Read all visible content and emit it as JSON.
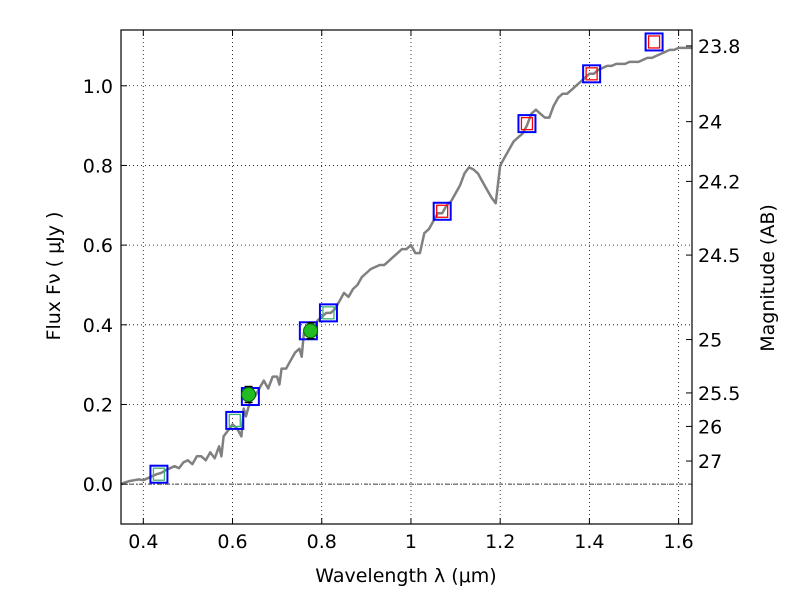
{
  "chart_data": {
    "type": "scatter",
    "title": "",
    "xlabel": "Wavelength  λ (μm)",
    "ylabel": "Flux  Fν  ( μJy )",
    "y2label": "Magnitude (AB)",
    "xlim": [
      0.35,
      1.63
    ],
    "ylim": [
      -0.1,
      1.14
    ],
    "grid": true,
    "x_ticks": [
      {
        "value": 0.4,
        "label": "0.4"
      },
      {
        "value": 0.6,
        "label": "0.6"
      },
      {
        "value": 0.8,
        "label": "0.8"
      },
      {
        "value": 1.0,
        "label": "1"
      },
      {
        "value": 1.2,
        "label": "1.2"
      },
      {
        "value": 1.4,
        "label": "1.4"
      },
      {
        "value": 1.6,
        "label": "1.6"
      }
    ],
    "y_ticks": [
      {
        "value": 0.0,
        "label": "0.0"
      },
      {
        "value": 0.2,
        "label": "0.2"
      },
      {
        "value": 0.4,
        "label": "0.4"
      },
      {
        "value": 0.6,
        "label": "0.6"
      },
      {
        "value": 0.8,
        "label": "0.8"
      },
      {
        "value": 1.0,
        "label": "1.0"
      }
    ],
    "magnitude_ticks": [
      {
        "flux": 1.1,
        "label": "23.8"
      },
      {
        "flux": 0.91,
        "label": "24"
      },
      {
        "flux": 0.76,
        "label": "24.2"
      },
      {
        "flux": 0.575,
        "label": "24.5"
      },
      {
        "flux": 0.363,
        "label": "25"
      },
      {
        "flux": 0.229,
        "label": "25.5"
      },
      {
        "flux": 0.145,
        "label": "26"
      },
      {
        "flux": 0.058,
        "label": "27"
      }
    ],
    "series": [
      {
        "kind": "line",
        "color": "#808080",
        "points": [
          [
            0.35,
            0.0
          ],
          [
            0.36,
            0.005
          ],
          [
            0.37,
            0.008
          ],
          [
            0.38,
            0.01
          ],
          [
            0.39,
            0.012
          ],
          [
            0.4,
            0.01
          ],
          [
            0.41,
            0.015
          ],
          [
            0.42,
            0.02
          ],
          [
            0.43,
            0.025
          ],
          [
            0.44,
            0.028
          ],
          [
            0.45,
            0.035
          ],
          [
            0.46,
            0.04
          ],
          [
            0.47,
            0.045
          ],
          [
            0.48,
            0.04
          ],
          [
            0.49,
            0.055
          ],
          [
            0.5,
            0.06
          ],
          [
            0.51,
            0.05
          ],
          [
            0.52,
            0.07
          ],
          [
            0.53,
            0.07
          ],
          [
            0.54,
            0.06
          ],
          [
            0.55,
            0.08
          ],
          [
            0.56,
            0.065
          ],
          [
            0.57,
            0.095
          ],
          [
            0.575,
            0.07
          ],
          [
            0.58,
            0.12
          ],
          [
            0.59,
            0.135
          ],
          [
            0.6,
            0.15
          ],
          [
            0.61,
            0.14
          ],
          [
            0.62,
            0.12
          ],
          [
            0.625,
            0.19
          ],
          [
            0.63,
            0.17
          ],
          [
            0.64,
            0.21
          ],
          [
            0.65,
            0.22
          ],
          [
            0.66,
            0.24
          ],
          [
            0.67,
            0.26
          ],
          [
            0.68,
            0.24
          ],
          [
            0.69,
            0.27
          ],
          [
            0.7,
            0.27
          ],
          [
            0.705,
            0.25
          ],
          [
            0.71,
            0.29
          ],
          [
            0.72,
            0.29
          ],
          [
            0.73,
            0.31
          ],
          [
            0.74,
            0.33
          ],
          [
            0.75,
            0.34
          ],
          [
            0.755,
            0.32
          ],
          [
            0.76,
            0.38
          ],
          [
            0.77,
            0.39
          ],
          [
            0.78,
            0.38
          ],
          [
            0.79,
            0.41
          ],
          [
            0.8,
            0.42
          ],
          [
            0.81,
            0.43
          ],
          [
            0.82,
            0.43
          ],
          [
            0.83,
            0.44
          ],
          [
            0.84,
            0.46
          ],
          [
            0.85,
            0.48
          ],
          [
            0.86,
            0.47
          ],
          [
            0.87,
            0.49
          ],
          [
            0.88,
            0.5
          ],
          [
            0.89,
            0.52
          ],
          [
            0.9,
            0.53
          ],
          [
            0.91,
            0.54
          ],
          [
            0.92,
            0.545
          ],
          [
            0.93,
            0.55
          ],
          [
            0.94,
            0.55
          ],
          [
            0.95,
            0.56
          ],
          [
            0.96,
            0.57
          ],
          [
            0.97,
            0.58
          ],
          [
            0.98,
            0.59
          ],
          [
            0.99,
            0.59
          ],
          [
            1.0,
            0.6
          ],
          [
            1.01,
            0.58
          ],
          [
            1.02,
            0.58
          ],
          [
            1.03,
            0.63
          ],
          [
            1.04,
            0.64
          ],
          [
            1.05,
            0.66
          ],
          [
            1.06,
            0.68
          ],
          [
            1.07,
            0.68
          ],
          [
            1.08,
            0.7
          ],
          [
            1.09,
            0.71
          ],
          [
            1.1,
            0.73
          ],
          [
            1.11,
            0.75
          ],
          [
            1.12,
            0.78
          ],
          [
            1.13,
            0.795
          ],
          [
            1.14,
            0.79
          ],
          [
            1.15,
            0.78
          ],
          [
            1.16,
            0.76
          ],
          [
            1.17,
            0.74
          ],
          [
            1.18,
            0.72
          ],
          [
            1.19,
            0.705
          ],
          [
            1.2,
            0.8
          ],
          [
            1.21,
            0.82
          ],
          [
            1.22,
            0.84
          ],
          [
            1.23,
            0.86
          ],
          [
            1.24,
            0.87
          ],
          [
            1.25,
            0.88
          ],
          [
            1.26,
            0.9
          ],
          [
            1.27,
            0.93
          ],
          [
            1.28,
            0.94
          ],
          [
            1.29,
            0.93
          ],
          [
            1.3,
            0.92
          ],
          [
            1.31,
            0.92
          ],
          [
            1.32,
            0.95
          ],
          [
            1.33,
            0.97
          ],
          [
            1.34,
            0.98
          ],
          [
            1.35,
            0.98
          ],
          [
            1.36,
            0.99
          ],
          [
            1.37,
            1.0
          ],
          [
            1.38,
            1.01
          ],
          [
            1.39,
            1.02
          ],
          [
            1.4,
            1.03
          ],
          [
            1.41,
            1.03
          ],
          [
            1.42,
            1.04
          ],
          [
            1.43,
            1.045
          ],
          [
            1.44,
            1.05
          ],
          [
            1.45,
            1.05
          ],
          [
            1.46,
            1.055
          ],
          [
            1.47,
            1.055
          ],
          [
            1.48,
            1.055
          ],
          [
            1.49,
            1.06
          ],
          [
            1.5,
            1.06
          ],
          [
            1.51,
            1.06
          ],
          [
            1.52,
            1.065
          ],
          [
            1.53,
            1.07
          ],
          [
            1.54,
            1.07
          ],
          [
            1.55,
            1.075
          ],
          [
            1.56,
            1.08
          ],
          [
            1.57,
            1.085
          ],
          [
            1.58,
            1.09
          ],
          [
            1.59,
            1.09
          ],
          [
            1.6,
            1.095
          ],
          [
            1.61,
            1.095
          ],
          [
            1.62,
            1.095
          ],
          [
            1.63,
            1.095
          ]
        ]
      },
      {
        "kind": "square-marker",
        "color": "#0000ff",
        "points": [
          [
            0.435,
            0.025
          ],
          [
            0.605,
            0.16
          ],
          [
            0.64,
            0.22
          ],
          [
            0.77,
            0.385
          ],
          [
            0.815,
            0.43
          ],
          [
            1.07,
            0.685
          ],
          [
            1.26,
            0.905
          ],
          [
            1.405,
            1.03
          ],
          [
            1.545,
            1.11
          ]
        ]
      },
      {
        "kind": "inner-square-marker",
        "color": "#ff0000",
        "points": [
          [
            1.07,
            0.685
          ],
          [
            1.26,
            0.905
          ],
          [
            1.405,
            1.03
          ],
          [
            1.545,
            1.11
          ]
        ]
      },
      {
        "kind": "inner-square-marker",
        "color": "#3cb371",
        "points": [
          [
            0.435,
            0.025
          ],
          [
            0.605,
            0.16
          ],
          [
            0.815,
            0.43
          ]
        ]
      },
      {
        "kind": "circle-errorbar",
        "color": "#22bb22",
        "points": [
          {
            "x": 0.636,
            "y": 0.225,
            "err": 0.02
          },
          {
            "x": 0.775,
            "y": 0.385,
            "err": 0.02
          }
        ]
      }
    ]
  }
}
